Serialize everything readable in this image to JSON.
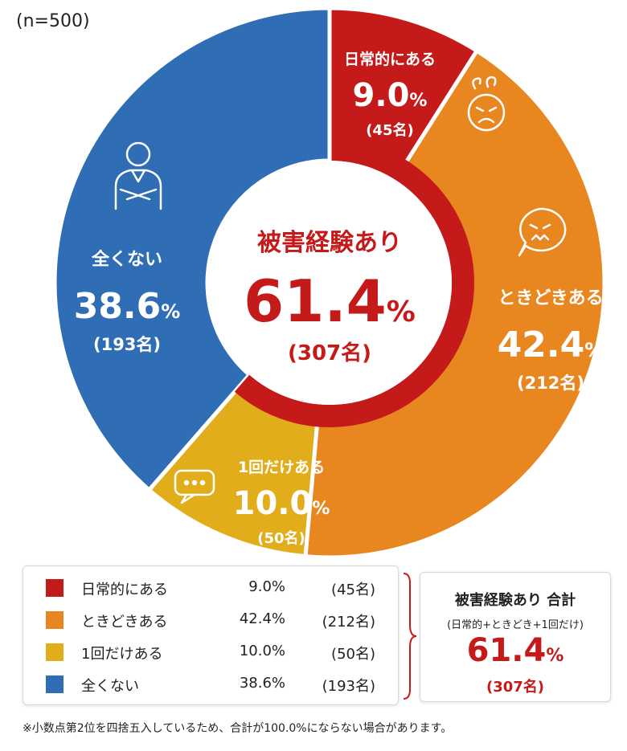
{
  "sample_label": "(n=500)",
  "chart_data": {
    "type": "pie",
    "categories": [
      "日常的にある",
      "ときどきある",
      "1回だけある",
      "全くない"
    ],
    "percent_labels": [
      "9.0",
      "42.4",
      "10.0",
      "38.6"
    ],
    "values": [
      9.0,
      42.4,
      10.0,
      38.6
    ],
    "counts": [
      "(45名)",
      "(212名)",
      "(50名)",
      "(193名)"
    ],
    "percent_sign": "%",
    "colors": [
      "#c41a1a",
      "#e8861f",
      "#e2ad1a",
      "#2f6db5"
    ],
    "icons": [
      "angry-face-icon",
      "frustrated-speech-bubble-icon",
      "ellipsis-speech-bubble-icon",
      "person-arms-crossed-icon"
    ],
    "center": {
      "title": "被害経験あり",
      "value": "61.4",
      "count": "(307名)"
    }
  },
  "legend": {
    "rows": [
      {
        "name": "日常的にある",
        "pct": "9.0%",
        "count": "(45名)",
        "color": "#c41a1a"
      },
      {
        "name": "ときどきある",
        "pct": "42.4%",
        "count": "(212名)",
        "color": "#e8861f"
      },
      {
        "name": "1回だけある",
        "pct": "10.0%",
        "count": "(50名)",
        "color": "#e2ad1a"
      },
      {
        "name": "全くない",
        "pct": "38.6%",
        "count": "(193名)",
        "color": "#2f6db5"
      }
    ]
  },
  "total": {
    "title": "被害経験あり 合計",
    "subtitle": "(日常的+ときどき+1回だけ)",
    "value": "61.4",
    "percent_sign": "%",
    "count": "(307名)"
  },
  "footnote": "※小数点第2位を四捨五入しているため、合計が100.0%にならない場合があります。"
}
